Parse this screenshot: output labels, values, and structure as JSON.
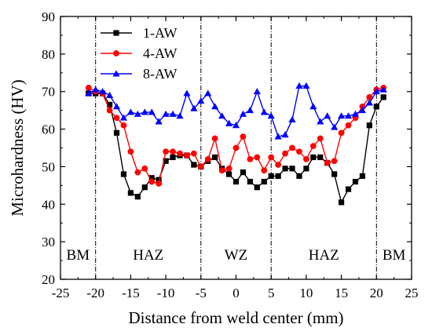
{
  "chart_data": {
    "type": "line",
    "xlabel": "Distance from weld center (mm)",
    "ylabel": "Microhardness (HV)",
    "xlim": [
      -25,
      25
    ],
    "ylim": [
      20,
      90
    ],
    "xticks": [
      -25,
      -20,
      -15,
      -10,
      -5,
      0,
      5,
      10,
      15,
      20,
      25
    ],
    "yticks": [
      20,
      30,
      40,
      50,
      60,
      70,
      80,
      90
    ],
    "grid": false,
    "legend_position": "top-left",
    "region_boundaries": [
      -20,
      -5,
      5,
      20
    ],
    "regions": [
      {
        "label": "BM",
        "x": -22.5
      },
      {
        "label": "HAZ",
        "x": -12.5
      },
      {
        "label": "WZ",
        "x": 0
      },
      {
        "label": "HAZ",
        "x": 12.5
      },
      {
        "label": "BM",
        "x": 22.5
      }
    ],
    "series": [
      {
        "name": "1-AW",
        "color": "#000000",
        "marker": "square",
        "x": [
          -21,
          -20,
          -19,
          -18,
          -17,
          -16,
          -15,
          -14,
          -13,
          -12,
          -11,
          -10,
          -9,
          -8,
          -7,
          -6,
          -5,
          -4,
          -3,
          -2,
          -1,
          0,
          1,
          2,
          3,
          4,
          5,
          6,
          7,
          8,
          9,
          10,
          11,
          12,
          13,
          14,
          15,
          16,
          17,
          18,
          19,
          20,
          21
        ],
        "y": [
          69.5,
          69.5,
          69.5,
          66.5,
          59,
          48,
          43,
          42,
          44.5,
          47,
          46.5,
          51.5,
          52.5,
          53,
          53,
          50.5,
          50,
          51.5,
          52.5,
          49.5,
          48,
          46,
          48.5,
          46,
          44.5,
          46,
          47.5,
          47.5,
          49.5,
          49.5,
          47.5,
          49.5,
          52.5,
          52.5,
          51,
          48,
          40.5,
          44,
          46,
          47.5,
          61,
          66,
          68.5
        ]
      },
      {
        "name": "4-AW",
        "color": "#ff0000",
        "marker": "circle",
        "x": [
          -21,
          -20,
          -19,
          -18,
          -17,
          -16,
          -15,
          -14,
          -13,
          -12,
          -11,
          -10,
          -9,
          -8,
          -7,
          -6,
          -5,
          -4,
          -3,
          -2,
          -1,
          0,
          1,
          2,
          3,
          4,
          5,
          6,
          7,
          8,
          9,
          10,
          11,
          12,
          13,
          14,
          15,
          16,
          17,
          18,
          19,
          20,
          21
        ],
        "y": [
          71,
          70,
          69.5,
          65,
          63,
          61,
          54,
          48.5,
          49.5,
          46,
          45.5,
          54,
          54,
          53.5,
          53,
          53.5,
          50,
          52,
          57.5,
          49,
          49.5,
          55,
          58,
          52,
          52.5,
          49,
          52.5,
          50.5,
          53.5,
          55,
          54,
          52,
          55.5,
          57.5,
          51,
          51.5,
          59,
          61,
          63,
          66,
          68.5,
          70.5,
          71
        ]
      },
      {
        "name": "8-AW",
        "color": "#0000ff",
        "marker": "triangle",
        "x": [
          -21,
          -20,
          -19,
          -18,
          -17,
          -16,
          -15,
          -14,
          -13,
          -12,
          -11,
          -10,
          -9,
          -8,
          -7,
          -6,
          -5,
          -4,
          -3,
          -2,
          -1,
          0,
          1,
          2,
          3,
          4,
          5,
          6,
          7,
          8,
          9,
          10,
          11,
          12,
          13,
          14,
          15,
          16,
          17,
          18,
          19,
          20,
          21
        ],
        "y": [
          69.5,
          70.5,
          70,
          69,
          66,
          63,
          64.5,
          64,
          64.5,
          64.5,
          62,
          64,
          64,
          63.5,
          69.5,
          65.5,
          67.5,
          69.5,
          66,
          63.5,
          61.5,
          61,
          64,
          65,
          70,
          64.5,
          63.5,
          58,
          58.5,
          62.5,
          71.5,
          71.5,
          66,
          62,
          63.5,
          60.5,
          63.5,
          63.5,
          64,
          65,
          67,
          70,
          70.5
        ]
      }
    ]
  }
}
